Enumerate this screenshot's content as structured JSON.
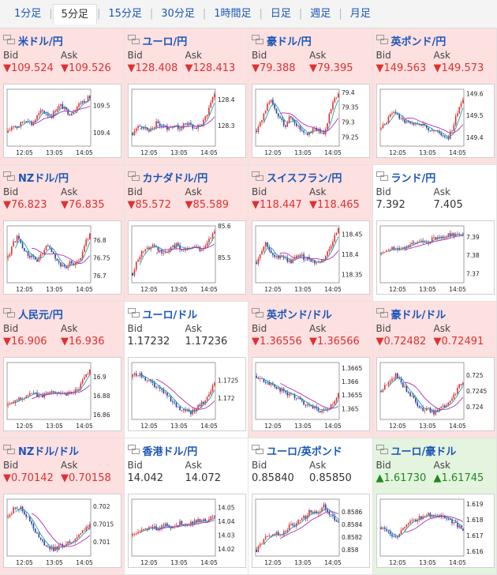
{
  "tabs": [
    {
      "label": "1分足",
      "active": false
    },
    {
      "label": "5分足",
      "active": true
    },
    {
      "label": "15分足",
      "active": false
    },
    {
      "label": "30分足",
      "active": false
    },
    {
      "label": "1時間足",
      "active": false
    },
    {
      "label": "日足",
      "active": false
    },
    {
      "label": "週足",
      "active": false
    },
    {
      "label": "月足",
      "active": false
    }
  ],
  "bid_label": "Bid",
  "ask_label": "Ask",
  "x_ticks": [
    "12:05",
    "13:05",
    "14:05"
  ],
  "colors": {
    "down_bg": "#fde0e0",
    "up_bg": "#e4f4df",
    "flat_bg": "#ffffff",
    "link": "#1a56b8",
    "down": "#e03030",
    "up": "#1f8a1f",
    "bull": "#e03030",
    "bear": "#2a3ea8",
    "ma_short": "#1f9ea8",
    "ma_long": "#b030b0"
  },
  "pairs": [
    {
      "name": "米ドル/円",
      "dir": "down",
      "arrow": "▼",
      "bid": "109.524",
      "ask": "109.526",
      "flag_icon": "us-jp-flag-icon",
      "chart_data": {
        "type": "candlestick",
        "x": [
          "12:05",
          "13:05",
          "14:05"
        ],
        "yticks": [
          "109.5",
          "109.4"
        ],
        "ylim": [
          109.35,
          109.56
        ],
        "trend": [
          109.4,
          109.43,
          109.42,
          109.44,
          109.45,
          109.43,
          109.46,
          109.48,
          109.47,
          109.46,
          109.49,
          109.5,
          109.48,
          109.47,
          109.49,
          109.51,
          109.52,
          109.53
        ]
      }
    },
    {
      "name": "ユーロ/円",
      "dir": "down",
      "arrow": "▼",
      "bid": "128.408",
      "ask": "128.413",
      "flag_icon": "eu-jp-flag-icon",
      "chart_data": {
        "type": "candlestick",
        "x": [
          "12:05",
          "13:05",
          "14:05"
        ],
        "yticks": [
          "128.4",
          "128.3"
        ],
        "ylim": [
          128.22,
          128.44
        ],
        "trend": [
          128.27,
          128.29,
          128.3,
          128.28,
          128.29,
          128.31,
          128.3,
          128.29,
          128.3,
          128.3,
          128.29,
          128.31,
          128.3,
          128.29,
          128.3,
          128.32,
          128.38,
          128.42
        ]
      }
    },
    {
      "name": "豪ドル/円",
      "dir": "down",
      "arrow": "▼",
      "bid": "79.388",
      "ask": "79.395",
      "flag_icon": "au-jp-flag-icon",
      "chart_data": {
        "type": "candlestick",
        "x": [
          "12:05",
          "13:05",
          "14:05"
        ],
        "yticks": [
          "79.4",
          "79.35",
          "79.3",
          "79.25"
        ],
        "ylim": [
          79.22,
          79.41
        ],
        "trend": [
          79.27,
          79.3,
          79.35,
          79.37,
          79.33,
          79.31,
          79.29,
          79.32,
          79.3,
          79.28,
          79.27,
          79.26,
          79.28,
          79.27,
          79.26,
          79.32,
          79.37,
          79.39
        ]
      }
    },
    {
      "name": "英ポンド/円",
      "dir": "down",
      "arrow": "▼",
      "bid": "149.563",
      "ask": "149.573",
      "flag_icon": "uk-jp-flag-icon",
      "chart_data": {
        "type": "candlestick",
        "x": [
          "12:05",
          "13:05",
          "14:05"
        ],
        "yticks": [
          "149.6",
          "149.5",
          "149.4"
        ],
        "ylim": [
          149.36,
          149.62
        ],
        "trend": [
          149.44,
          149.47,
          149.5,
          149.52,
          149.48,
          149.47,
          149.46,
          149.45,
          149.47,
          149.45,
          149.44,
          149.43,
          149.42,
          149.41,
          149.4,
          149.45,
          149.53,
          149.58
        ]
      }
    },
    {
      "name": "NZドル/円",
      "dir": "down",
      "arrow": "▼",
      "bid": "76.823",
      "ask": "76.835",
      "flag_icon": "nz-jp-flag-icon",
      "chart_data": {
        "type": "candlestick",
        "x": [
          "12:05",
          "13:05",
          "14:05"
        ],
        "yticks": [
          "76.8",
          "76.75",
          "76.7"
        ],
        "ylim": [
          76.68,
          76.84
        ],
        "trend": [
          76.75,
          76.79,
          76.81,
          76.78,
          76.76,
          76.75,
          76.74,
          76.76,
          76.78,
          76.77,
          76.75,
          76.73,
          76.72,
          76.74,
          76.73,
          76.75,
          76.79,
          76.82
        ]
      }
    },
    {
      "name": "カナダドル/円",
      "dir": "down",
      "arrow": "▼",
      "bid": "85.572",
      "ask": "85.589",
      "flag_icon": "ca-jp-flag-icon",
      "chart_data": {
        "type": "candlestick",
        "x": [
          "12:05",
          "13:05",
          "14:05"
        ],
        "yticks": [
          "85.6",
          "85.5"
        ],
        "ylim": [
          85.42,
          85.6
        ],
        "trend": [
          85.45,
          85.49,
          85.52,
          85.53,
          85.54,
          85.53,
          85.52,
          85.51,
          85.53,
          85.54,
          85.53,
          85.52,
          85.53,
          85.54,
          85.52,
          85.53,
          85.56,
          85.58
        ]
      }
    },
    {
      "name": "スイスフラン/円",
      "dir": "down",
      "arrow": "▼",
      "bid": "118.447",
      "ask": "118.465",
      "flag_icon": "ch-jp-flag-icon",
      "chart_data": {
        "type": "candlestick",
        "x": [
          "12:05",
          "13:05",
          "14:05"
        ],
        "yticks": [
          "118.45",
          "118.4",
          "118.35"
        ],
        "ylim": [
          118.33,
          118.47
        ],
        "trend": [
          118.38,
          118.41,
          118.43,
          118.4,
          118.39,
          118.4,
          118.39,
          118.38,
          118.39,
          118.4,
          118.39,
          118.39,
          118.38,
          118.38,
          118.39,
          118.41,
          118.44,
          118.46
        ]
      }
    },
    {
      "name": "ランド/円",
      "dir": "flat",
      "arrow": "",
      "bid": "7.392",
      "ask": "7.405",
      "flag_icon": "za-jp-flag-icon",
      "chart_data": {
        "type": "candlestick",
        "x": [
          "12:05",
          "13:05",
          "14:05"
        ],
        "yticks": [
          "7.39",
          "7.38",
          "7.37"
        ],
        "ylim": [
          7.365,
          7.396
        ],
        "trend": [
          7.381,
          7.382,
          7.383,
          7.384,
          7.384,
          7.385,
          7.386,
          7.386,
          7.387,
          7.388,
          7.388,
          7.389,
          7.39,
          7.39,
          7.391,
          7.391,
          7.392,
          7.392
        ]
      }
    },
    {
      "name": "人民元/円",
      "dir": "down",
      "arrow": "▼",
      "bid": "16.906",
      "ask": "16.936",
      "flag_icon": "cn-jp-flag-icon",
      "chart_data": {
        "type": "candlestick",
        "x": [
          "12:05",
          "13:05",
          "14:05"
        ],
        "yticks": [
          "16.9",
          "16.88",
          "16.86"
        ],
        "ylim": [
          16.855,
          16.915
        ],
        "trend": [
          16.87,
          16.872,
          16.876,
          16.878,
          16.88,
          16.882,
          16.881,
          16.88,
          16.882,
          16.884,
          16.885,
          16.883,
          16.882,
          16.884,
          16.886,
          16.89,
          16.9,
          16.908
        ]
      }
    },
    {
      "name": "ユーロ/ドル",
      "dir": "flat",
      "arrow": "",
      "bid": "1.17232",
      "ask": "1.17236",
      "flag_icon": "eu-us-flag-icon",
      "chart_data": {
        "type": "candlestick",
        "x": [
          "12:05",
          "13:05",
          "14:05"
        ],
        "yticks": [
          "1.1725",
          "1.172"
        ],
        "ylim": [
          1.1714,
          1.173
        ],
        "trend": [
          1.1726,
          1.1727,
          1.1726,
          1.1725,
          1.1724,
          1.1723,
          1.1722,
          1.1721,
          1.1719,
          1.1718,
          1.1717,
          1.1717,
          1.1716,
          1.1717,
          1.1718,
          1.1719,
          1.1722,
          1.1724
        ]
      }
    },
    {
      "name": "英ポンド/ドル",
      "dir": "down",
      "arrow": "▼",
      "bid": "1.36556",
      "ask": "1.36566",
      "flag_icon": "uk-us-flag-icon",
      "chart_data": {
        "type": "candlestick",
        "x": [
          "12:05",
          "13:05",
          "14:05"
        ],
        "yticks": [
          "1.3665",
          "1.366",
          "1.3655",
          "1.365"
        ],
        "ylim": [
          1.3646,
          1.3667
        ],
        "trend": [
          1.3662,
          1.3661,
          1.366,
          1.3659,
          1.3658,
          1.3657,
          1.3656,
          1.3655,
          1.3654,
          1.3653,
          1.3652,
          1.3651,
          1.365,
          1.3649,
          1.3649,
          1.365,
          1.3652,
          1.3655
        ]
      }
    },
    {
      "name": "豪ドル/ドル",
      "dir": "down",
      "arrow": "▼",
      "bid": "0.72482",
      "ask": "0.72491",
      "flag_icon": "au-us-flag-icon",
      "chart_data": {
        "type": "candlestick",
        "x": [
          "12:05",
          "13:05",
          "14:05"
        ],
        "yticks": [
          "0.725",
          "0.7245",
          "0.724"
        ],
        "ylim": [
          0.7236,
          0.7254
        ],
        "trend": [
          0.7245,
          0.7247,
          0.7249,
          0.725,
          0.7248,
          0.7246,
          0.7244,
          0.7242,
          0.724,
          0.7239,
          0.7239,
          0.7238,
          0.7239,
          0.724,
          0.7241,
          0.7243,
          0.7246,
          0.7248
        ]
      }
    },
    {
      "name": "NZドル/ドル",
      "dir": "down",
      "arrow": "▼",
      "bid": "0.70142",
      "ask": "0.70158",
      "flag_icon": "nz-us-flag-icon",
      "chart_data": {
        "type": "candlestick",
        "x": [
          "12:05",
          "13:05",
          "14:05"
        ],
        "yticks": [
          "0.702",
          "0.7015",
          "0.701"
        ],
        "ylim": [
          0.7006,
          0.7022
        ],
        "trend": [
          0.7017,
          0.7019,
          0.702,
          0.7019,
          0.7017,
          0.7015,
          0.7012,
          0.701,
          0.7009,
          0.7008,
          0.7008,
          0.7009,
          0.7009,
          0.701,
          0.7011,
          0.7012,
          0.7014,
          0.7015
        ]
      }
    },
    {
      "name": "香港ドル/円",
      "dir": "flat",
      "arrow": "",
      "bid": "14.042",
      "ask": "14.072",
      "flag_icon": "hk-jp-flag-icon",
      "chart_data": {
        "type": "candlestick",
        "x": [
          "12:05",
          "13:05",
          "14:05"
        ],
        "yticks": [
          "14.05",
          "14.04",
          "14.03",
          "14.02"
        ],
        "ylim": [
          14.015,
          14.056
        ],
        "trend": [
          14.03,
          14.032,
          14.033,
          14.034,
          14.036,
          14.035,
          14.037,
          14.038,
          14.036,
          14.037,
          14.039,
          14.038,
          14.039,
          14.04,
          14.041,
          14.04,
          14.042,
          14.043
        ]
      }
    },
    {
      "name": "ユーロ/英ポンド",
      "dir": "flat",
      "arrow": "",
      "bid": "0.85840",
      "ask": "0.85850",
      "flag_icon": "eu-uk-flag-icon",
      "chart_data": {
        "type": "candlestick",
        "x": [
          "12:05",
          "13:05",
          "14:05"
        ],
        "yticks": [
          "0.8586",
          "0.8584",
          "0.8582",
          "0.858"
        ],
        "ylim": [
          0.8579,
          0.8588
        ],
        "trend": [
          0.858,
          0.8581,
          0.8582,
          0.8582,
          0.8583,
          0.8582,
          0.8583,
          0.8584,
          0.8584,
          0.8585,
          0.8585,
          0.8586,
          0.8586,
          0.8586,
          0.8587,
          0.8586,
          0.8585,
          0.8584
        ]
      }
    },
    {
      "name": "ユーロ/豪ドル",
      "dir": "up",
      "arrow": "▲",
      "bid": "1.61730",
      "ask": "1.61745",
      "flag_icon": "eu-au-flag-icon",
      "chart_data": {
        "type": "candlestick",
        "x": [
          "12:05",
          "13:05",
          "14:05"
        ],
        "yticks": [
          "1.619",
          "1.618",
          "1.617",
          "1.616"
        ],
        "ylim": [
          1.6157,
          1.6193
        ],
        "trend": [
          1.6175,
          1.6172,
          1.617,
          1.6168,
          1.6172,
          1.6176,
          1.6178,
          1.618,
          1.6181,
          1.6182,
          1.6183,
          1.6182,
          1.6183,
          1.6182,
          1.618,
          1.6178,
          1.6176,
          1.6174
        ]
      }
    }
  ]
}
